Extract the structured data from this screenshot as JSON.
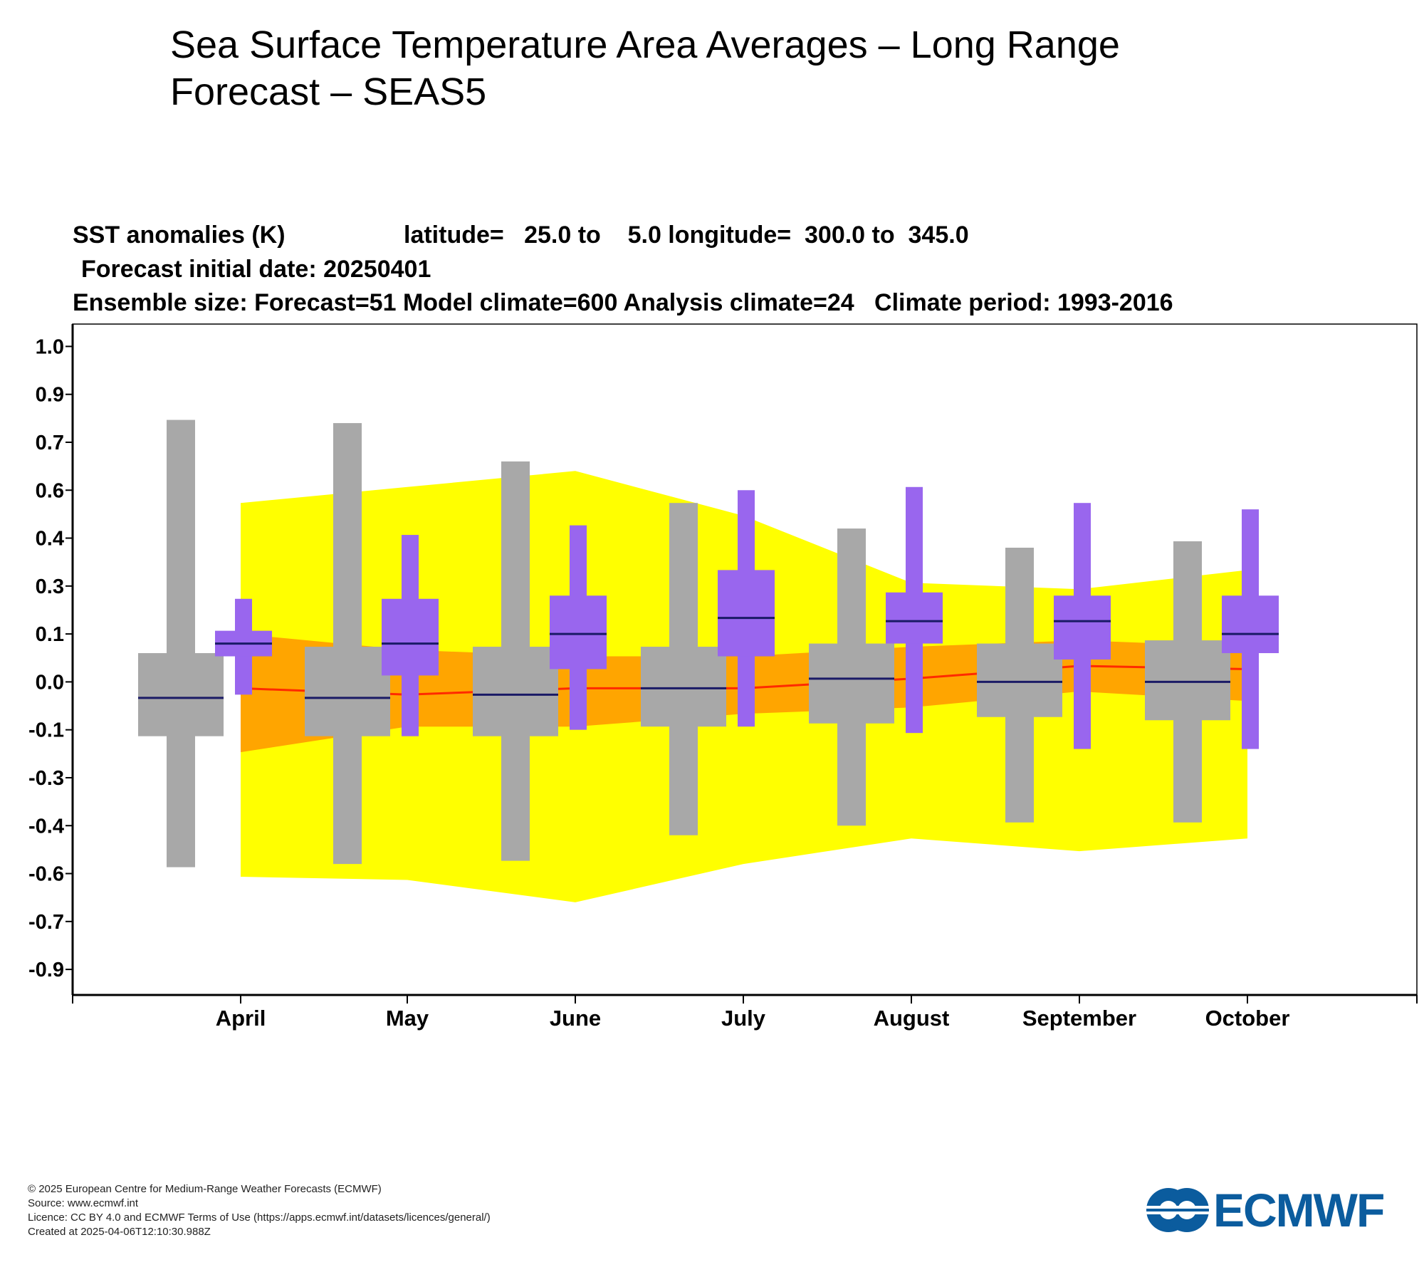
{
  "page": {
    "title_line1": "Sea Surface Temperature Area Averages – Long Range",
    "title_line2": "Forecast – SEAS5"
  },
  "chart_header": {
    "line1_var": "SST anomalies (K)",
    "line1_lat": "latitude=   25.0 to    5.0 longitude=  300.0 to  345.0",
    "line2": "Forecast initial date: 20250401",
    "line3": "Ensemble size: Forecast=51 Model climate=600 Analysis climate=24   Climate period: 1993-2016"
  },
  "colors": {
    "climate_outer": "#ffff00",
    "climate_inner": "#ffa500",
    "climate_median": "#ff2a00",
    "forecast_box": "#9966ee",
    "model_climate_box": "#a8a8a8",
    "median_line": "#1a1a66"
  },
  "chart_data": {
    "type": "box",
    "title": "SST anomalies (K)",
    "categories": [
      "April",
      "May",
      "June",
      "July",
      "August",
      "September",
      "October"
    ],
    "y_tick_labels": [
      "1.0",
      "0.9",
      "0.7",
      "0.6",
      "0.4",
      "0.3",
      "0.1",
      "0.0",
      "-0.1",
      "-0.3",
      "-0.4",
      "-0.6",
      "-0.7",
      "-0.9"
    ],
    "y_tick_values": [
      1.05,
      0.9,
      0.75,
      0.6,
      0.45,
      0.3,
      0.15,
      0.0,
      -0.15,
      -0.3,
      -0.45,
      -0.6,
      -0.75,
      -0.9
    ],
    "ylim": [
      -0.98,
      1.12
    ],
    "analysis_climate": {
      "outer_band": {
        "upper": [
          0.56,
          0.61,
          0.66,
          0.52,
          0.31,
          0.29,
          0.35
        ],
        "lower": [
          -0.61,
          -0.62,
          -0.69,
          -0.57,
          -0.49,
          -0.53,
          -0.49
        ]
      },
      "inner_band": {
        "upper": [
          0.15,
          0.1,
          0.08,
          0.08,
          0.11,
          0.13,
          0.11
        ],
        "lower": [
          -0.22,
          -0.14,
          -0.14,
          -0.1,
          -0.08,
          -0.03,
          -0.06
        ]
      },
      "median": [
        -0.02,
        -0.04,
        -0.02,
        -0.02,
        0.01,
        0.05,
        0.04
      ]
    },
    "model_climate": {
      "max": [
        0.82,
        0.81,
        0.69,
        0.56,
        0.48,
        0.42,
        0.44
      ],
      "upper_quartile": [
        0.09,
        0.11,
        0.11,
        0.11,
        0.12,
        0.12,
        0.13
      ],
      "median": [
        -0.05,
        -0.05,
        -0.04,
        -0.02,
        0.01,
        0.0,
        0.0
      ],
      "lower_quartile": [
        -0.17,
        -0.17,
        -0.17,
        -0.14,
        -0.13,
        -0.11,
        -0.12
      ],
      "min": [
        -0.58,
        -0.57,
        -0.56,
        -0.48,
        -0.45,
        -0.44,
        -0.44
      ]
    },
    "forecast": {
      "max": [
        0.26,
        0.46,
        0.49,
        0.6,
        0.61,
        0.56,
        0.54
      ],
      "upper_quartile": [
        0.16,
        0.26,
        0.27,
        0.35,
        0.28,
        0.27,
        0.27
      ],
      "median": [
        0.12,
        0.12,
        0.15,
        0.2,
        0.19,
        0.19,
        0.15
      ],
      "lower_quartile": [
        0.08,
        0.02,
        0.04,
        0.08,
        0.12,
        0.07,
        0.09
      ],
      "min": [
        -0.04,
        -0.17,
        -0.15,
        -0.14,
        -0.16,
        -0.21,
        -0.21
      ]
    }
  },
  "footer": {
    "line1": "© 2025 European Centre for Medium-Range Weather Forecasts (ECMWF)",
    "line2": "Source: www.ecmwf.int",
    "line3": "Licence: CC BY 4.0 and ECMWF Terms of Use (https://apps.ecmwf.int/datasets/licences/general/)",
    "line4": "Created at 2025-04-06T12:10:30.988Z"
  },
  "logo": {
    "text": "ECMWF"
  }
}
